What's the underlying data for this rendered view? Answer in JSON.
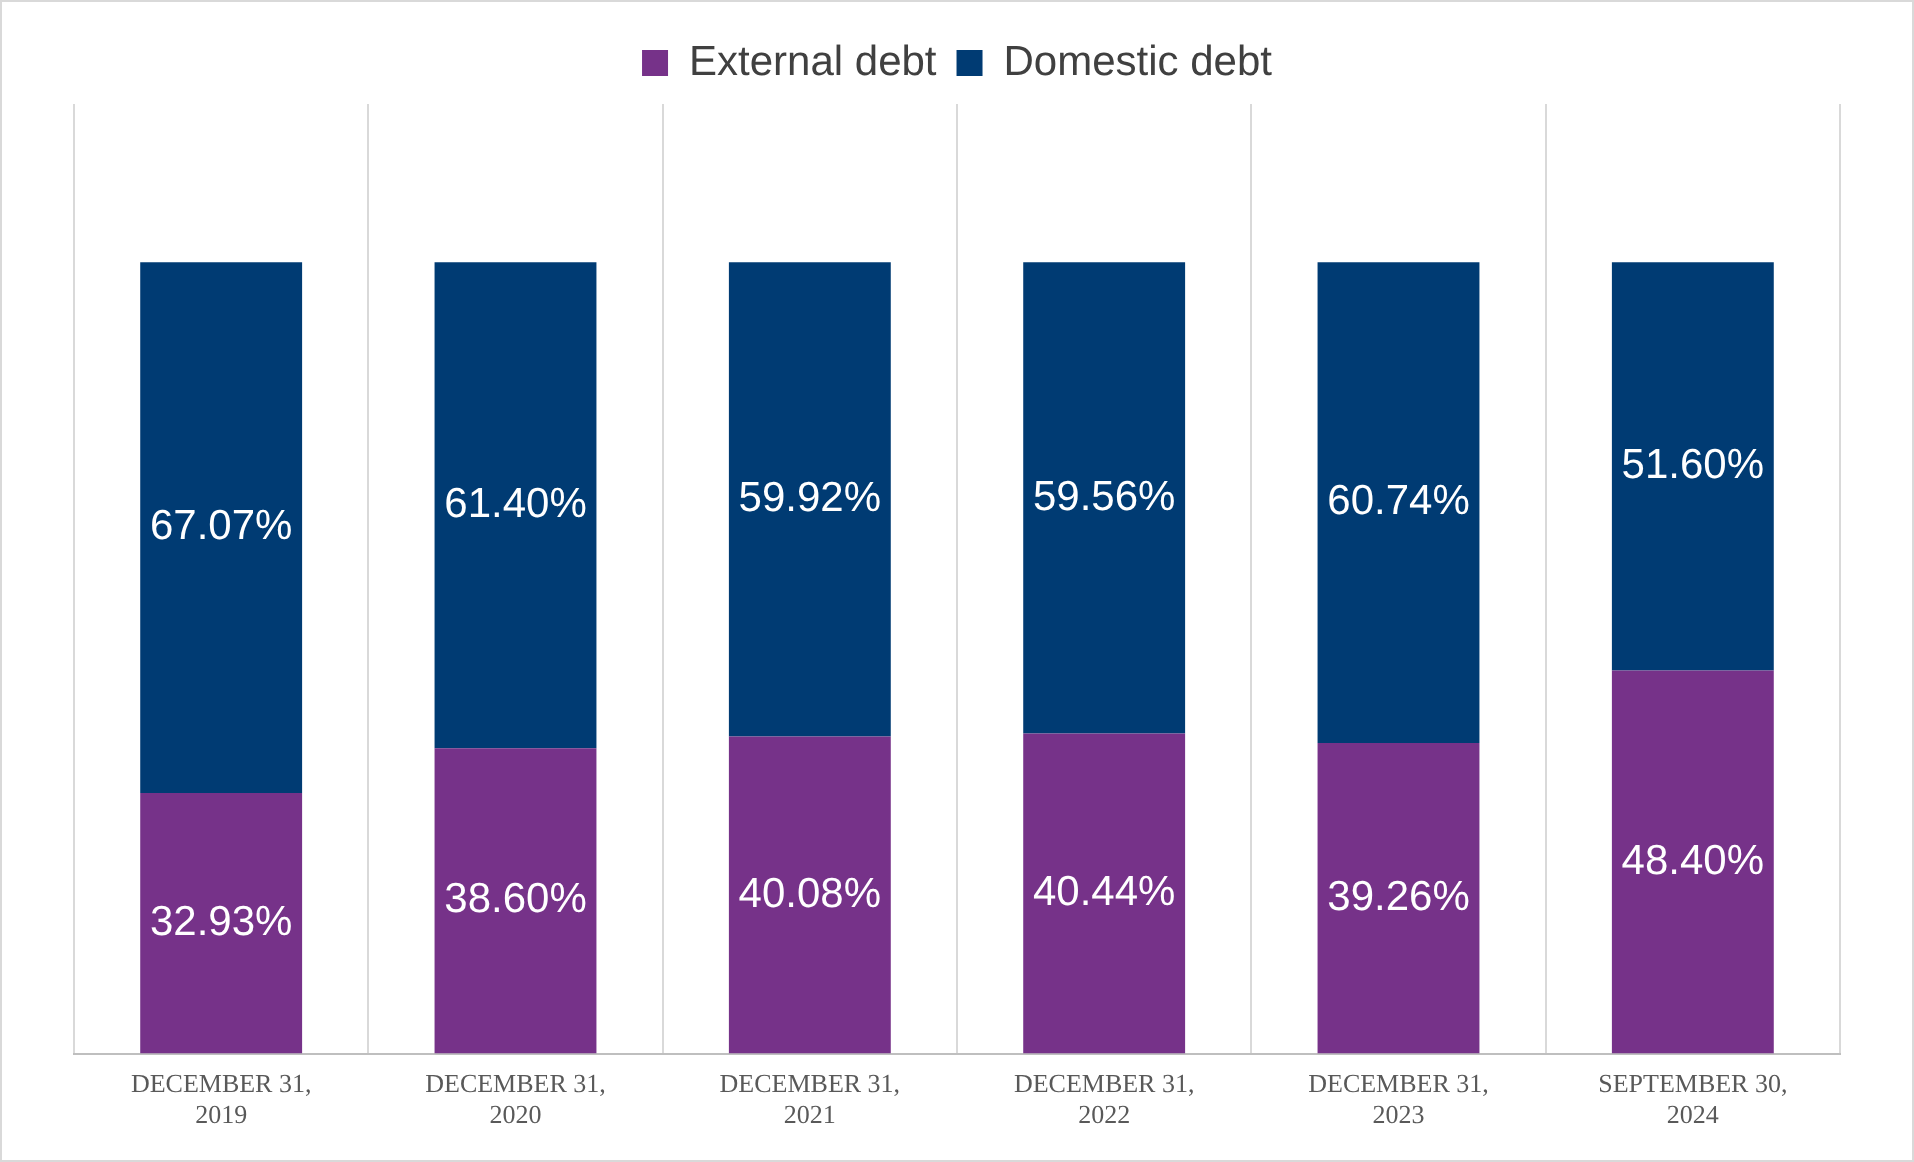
{
  "chart_data": {
    "type": "bar",
    "stacked": true,
    "categories": [
      "DECEMBER 31, 2019",
      "DECEMBER 31, 2020",
      "DECEMBER 31, 2021",
      "DECEMBER 31, 2022",
      "DECEMBER 31, 2023",
      "SEPTEMBER 30, 2024"
    ],
    "series": [
      {
        "name": "External debt",
        "color": "#763289",
        "values": [
          32.93,
          38.6,
          40.08,
          40.44,
          39.26,
          48.4
        ],
        "value_labels": [
          "32.93%",
          "38.60%",
          "40.08%",
          "40.44%",
          "39.26%",
          "48.40%"
        ]
      },
      {
        "name": "Domestic debt",
        "color": "#003b73",
        "values": [
          67.07,
          61.4,
          59.92,
          59.56,
          60.74,
          51.6
        ],
        "value_labels": [
          "67.07%",
          "61.40%",
          "59.92%",
          "59.56%",
          "60.74%",
          "51.60%"
        ]
      }
    ],
    "legend": "top",
    "grid": "x",
    "tick_labels": "x"
  }
}
